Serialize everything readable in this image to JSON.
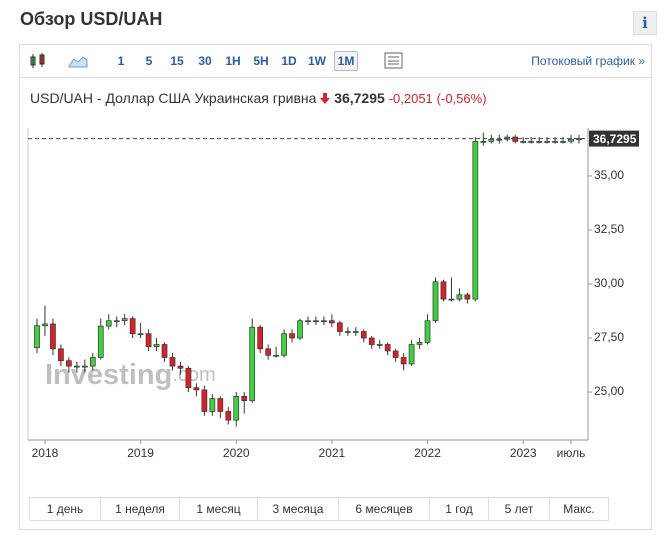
{
  "header": {
    "title": "Обзор USD/UAH",
    "info": "i"
  },
  "toolbar": {
    "intervals": [
      "1",
      "5",
      "15",
      "30",
      "1H",
      "5H",
      "1D",
      "1W",
      "1M"
    ],
    "active": 8,
    "stream_link": "Потоковый график »"
  },
  "quote": {
    "name": "USD/UAH - Доллар США Украинская гривна",
    "price": "36,7295",
    "change": "-0,2051",
    "change_percent": "(-0,56%)"
  },
  "chart_data": {
    "type": "candlestick",
    "watermark": "Investing",
    "watermark_suffix": ".com",
    "categories": [
      null,
      "2018",
      null,
      null,
      null,
      null,
      null,
      null,
      null,
      null,
      null,
      null,
      null,
      "2019",
      null,
      null,
      null,
      null,
      null,
      null,
      null,
      null,
      null,
      null,
      null,
      "2020",
      null,
      null,
      null,
      null,
      null,
      null,
      null,
      null,
      null,
      null,
      null,
      "2021",
      null,
      null,
      null,
      null,
      null,
      null,
      null,
      null,
      null,
      null,
      null,
      "2022",
      null,
      null,
      null,
      null,
      null,
      null,
      null,
      null,
      null,
      null,
      null,
      "2023",
      null,
      null,
      null,
      null,
      null,
      "июль",
      null
    ],
    "open": [
      27.05,
      28.07,
      28.15,
      27.0,
      26.45,
      26.2,
      26.2,
      26.2,
      26.6,
      28.05,
      28.3,
      28.3,
      28.4,
      27.7,
      27.7,
      27.1,
      27.2,
      26.6,
      26.2,
      26.1,
      25.2,
      25.1,
      24.1,
      24.7,
      24.1,
      23.7,
      24.8,
      24.6,
      28.0,
      27.0,
      26.7,
      26.7,
      27.7,
      27.5,
      28.3,
      28.3,
      28.3,
      28.3,
      28.2,
      27.8,
      27.8,
      27.8,
      27.5,
      27.2,
      27.2,
      26.9,
      26.6,
      26.3,
      27.2,
      27.3,
      28.3,
      30.1,
      29.3,
      29.3,
      29.5,
      29.3,
      36.6,
      36.6,
      36.7,
      36.7,
      36.8,
      36.6,
      36.6,
      36.6,
      36.6,
      36.6,
      36.6,
      36.6,
      36.7
    ],
    "high": [
      28.4,
      29.0,
      28.4,
      27.2,
      26.6,
      26.4,
      26.5,
      26.8,
      28.4,
      28.6,
      28.5,
      28.6,
      28.5,
      28.2,
      27.9,
      27.5,
      27.3,
      26.8,
      26.4,
      26.2,
      25.4,
      25.3,
      24.9,
      24.8,
      24.3,
      25.0,
      25.0,
      28.4,
      28.1,
      27.2,
      27.1,
      27.9,
      27.9,
      28.4,
      28.5,
      28.5,
      28.5,
      28.6,
      28.3,
      28.0,
      28.0,
      27.9,
      27.6,
      27.4,
      27.3,
      27.0,
      26.8,
      27.4,
      27.5,
      28.6,
      30.3,
      30.2,
      30.3,
      29.8,
      29.6,
      36.8,
      37.0,
      36.9,
      36.9,
      36.9,
      36.9,
      36.8,
      36.8,
      36.8,
      36.8,
      36.8,
      36.8,
      36.9,
      36.9
    ],
    "low": [
      26.8,
      27.6,
      26.7,
      26.2,
      25.9,
      25.9,
      25.9,
      26.0,
      26.5,
      27.9,
      28.0,
      28.1,
      27.5,
      27.5,
      26.9,
      26.9,
      26.4,
      26.0,
      25.8,
      25.0,
      24.8,
      23.9,
      23.9,
      23.8,
      23.5,
      23.4,
      24.0,
      24.5,
      26.8,
      26.5,
      26.6,
      26.6,
      27.3,
      27.4,
      28.1,
      28.1,
      28.1,
      28.0,
      27.6,
      27.6,
      27.6,
      27.3,
      27.0,
      27.0,
      26.7,
      26.4,
      26.0,
      26.2,
      27.0,
      27.2,
      28.2,
      29.2,
      29.2,
      29.2,
      29.1,
      29.2,
      36.4,
      36.5,
      36.5,
      36.6,
      36.5,
      36.5,
      36.5,
      36.5,
      36.5,
      36.5,
      36.5,
      36.5,
      36.5
    ],
    "close": [
      28.07,
      28.15,
      27.0,
      26.45,
      26.2,
      26.2,
      26.2,
      26.6,
      28.05,
      28.3,
      28.3,
      28.4,
      27.7,
      27.7,
      27.1,
      27.2,
      26.6,
      26.2,
      26.1,
      25.2,
      25.1,
      24.1,
      24.7,
      24.1,
      23.7,
      24.8,
      24.6,
      28.0,
      27.0,
      26.7,
      26.7,
      27.7,
      27.5,
      28.3,
      28.3,
      28.3,
      28.3,
      28.2,
      27.8,
      27.8,
      27.8,
      27.5,
      27.2,
      27.2,
      26.9,
      26.6,
      26.3,
      27.2,
      27.3,
      28.3,
      30.1,
      29.3,
      29.3,
      29.5,
      29.3,
      36.6,
      36.6,
      36.7,
      36.7,
      36.8,
      36.6,
      36.6,
      36.6,
      36.6,
      36.6,
      36.6,
      36.6,
      36.7,
      36.7295
    ],
    "up_color": "#3fcf3f",
    "down_color": "#d8222a",
    "last_value": {
      "value": 36.7295,
      "label": "36,7295"
    },
    "ylim": [
      22.78,
      37.22
    ],
    "yticks": [
      {
        "value": 25,
        "label": "25,00"
      },
      {
        "value": 27.5,
        "label": "27,50"
      },
      {
        "value": 30,
        "label": "30,00"
      },
      {
        "value": 32.5,
        "label": "32,50"
      },
      {
        "value": 35,
        "label": "35,00"
      }
    ],
    "grid": false
  },
  "periods": [
    "1 день",
    "1 неделя",
    "1 месяц",
    "3 месяца",
    "6 месяцев",
    "1 год",
    "5 лет",
    "Макс."
  ]
}
